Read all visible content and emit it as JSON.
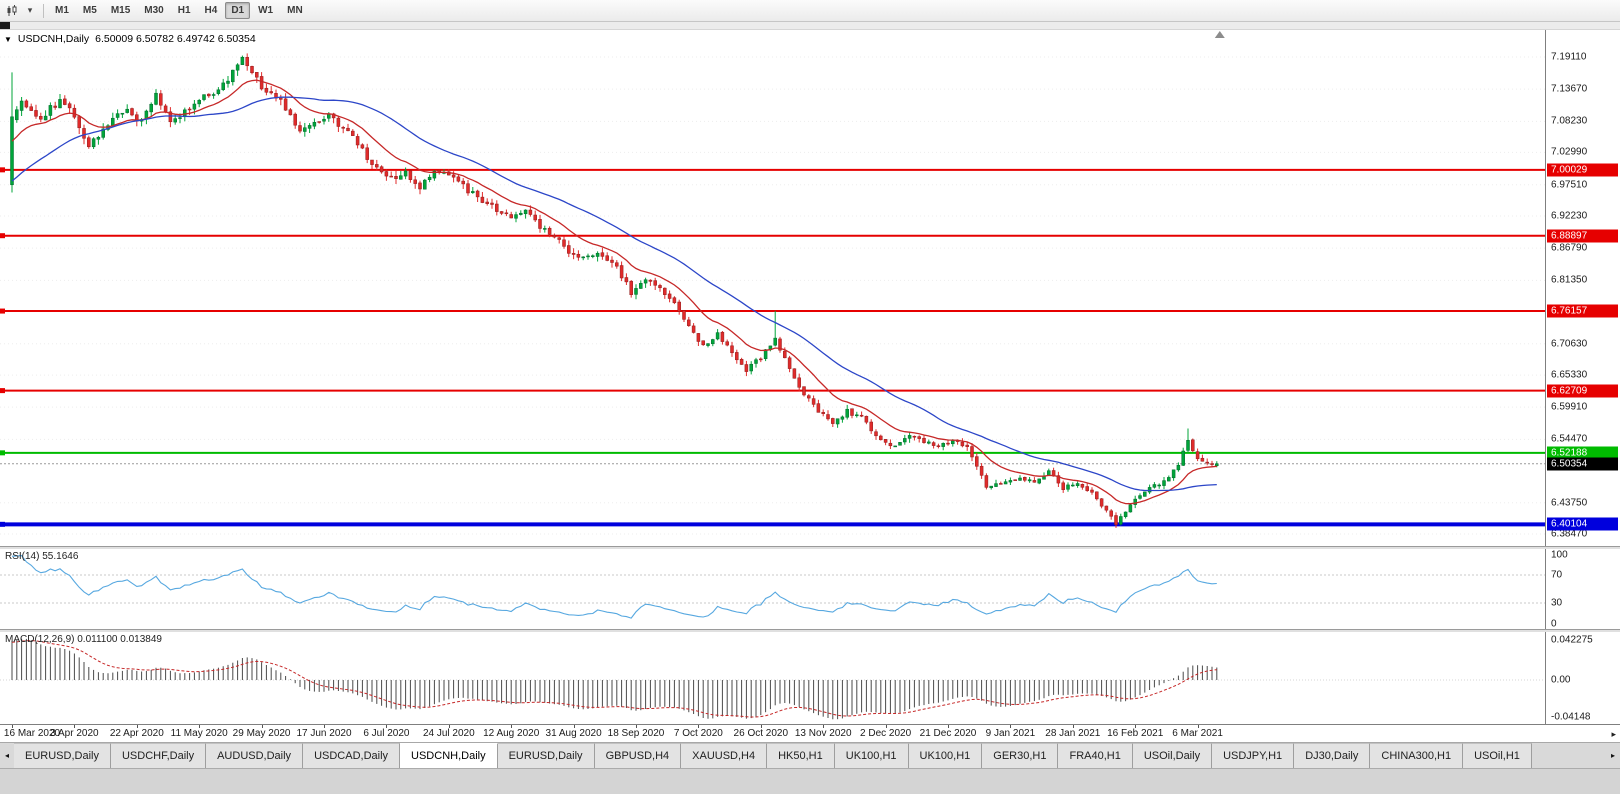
{
  "toolbar": {
    "timeframes": [
      "M1",
      "M5",
      "M15",
      "M30",
      "H1",
      "H4",
      "D1",
      "W1",
      "MN"
    ],
    "active_timeframe": "D1"
  },
  "chart": {
    "title_symbol": "USDCNH,Daily",
    "title_ohlc": "6.50009 6.50782 6.49742 6.50354"
  },
  "rsi_panel": {
    "label": "RSI(14) 55.1646"
  },
  "macd_panel": {
    "label": "MACD(12,26,9) 0.011100 0.013849"
  },
  "tabs": {
    "items": [
      "EURUSD,Daily",
      "USDCHF,Daily",
      "AUDUSD,Daily",
      "USDCAD,Daily",
      "USDCNH,Daily",
      "EURUSD,Daily",
      "GBPUSD,H4",
      "XAUUSD,H4",
      "HK50,H1",
      "UK100,H1",
      "UK100,H1",
      "GER30,H1",
      "FRA40,H1",
      "USOil,Daily",
      "USDJPY,H1",
      "DJ30,Daily",
      "CHINA300,H1",
      "USOil,H1"
    ],
    "active_index": 4
  },
  "chart_data": {
    "type": "candlestick",
    "symbol": "USDCNH",
    "timeframe": "Daily",
    "last_ohlc": {
      "open": 6.50009,
      "high": 6.50782,
      "low": 6.49742,
      "close": 6.50354
    },
    "y_range": {
      "top": 7.2367,
      "bottom": 6.3644
    },
    "y_ticks": [
      "7.19110",
      "7.13670",
      "7.08230",
      "7.02990",
      "6.97510",
      "6.92230",
      "6.86790",
      "6.81350",
      "6.70630",
      "6.65330",
      "6.59910",
      "6.54470",
      "6.43750",
      "6.38470"
    ],
    "levels": [
      {
        "value": 7.00029,
        "label": "7.00029",
        "color": "#e60000",
        "width": 2
      },
      {
        "value": 6.88897,
        "label": "6.88897",
        "color": "#e60000",
        "width": 2
      },
      {
        "value": 6.76157,
        "label": "6.76157",
        "color": "#e60000",
        "width": 2
      },
      {
        "value": 6.62709,
        "label": "6.62709",
        "color": "#e60000",
        "width": 2
      },
      {
        "value": 6.52188,
        "label": "6.52188",
        "color": "#00bb00",
        "width": 2
      },
      {
        "value": 6.40104,
        "label": "6.40104",
        "color": "#0000dd",
        "width": 4
      }
    ],
    "current_price": {
      "value": 6.50354,
      "label": "6.50354",
      "color": "#000000"
    },
    "up_color": "#00a53a",
    "down_color": "#e02b2b",
    "candle_count": 252,
    "seed": 20210312,
    "warmup": {
      "count": 40,
      "start_price": 6.83
    },
    "price_anchors": [
      [
        0,
        7.08
      ],
      [
        2,
        7.115
      ],
      [
        4,
        7.1
      ],
      [
        6,
        7.085
      ],
      [
        8,
        7.105
      ],
      [
        10,
        7.115
      ],
      [
        12,
        7.1
      ],
      [
        14,
        7.075
      ],
      [
        16,
        7.04
      ],
      [
        18,
        7.06
      ],
      [
        20,
        7.08
      ],
      [
        22,
        7.095
      ],
      [
        24,
        7.1
      ],
      [
        26,
        7.085
      ],
      [
        28,
        7.095
      ],
      [
        30,
        7.125
      ],
      [
        32,
        7.1
      ],
      [
        33,
        7.08
      ],
      [
        36,
        7.1
      ],
      [
        39,
        7.12
      ],
      [
        42,
        7.13
      ],
      [
        45,
        7.155
      ],
      [
        48,
        7.19
      ],
      [
        50,
        7.165
      ],
      [
        52,
        7.14
      ],
      [
        54,
        7.13
      ],
      [
        56,
        7.115
      ],
      [
        58,
        7.09
      ],
      [
        60,
        7.07
      ],
      [
        63,
        7.08
      ],
      [
        66,
        7.09
      ],
      [
        69,
        7.07
      ],
      [
        72,
        7.045
      ],
      [
        74,
        7.02
      ],
      [
        76,
        7.005
      ],
      [
        79,
        6.985
      ],
      [
        82,
        6.995
      ],
      [
        85,
        6.972
      ],
      [
        88,
        7.0
      ],
      [
        91,
        6.99
      ],
      [
        94,
        6.972
      ],
      [
        97,
        6.953
      ],
      [
        101,
        6.932
      ],
      [
        104,
        6.92
      ],
      [
        107,
        6.93
      ],
      [
        110,
        6.905
      ],
      [
        113,
        6.89
      ],
      [
        116,
        6.862
      ],
      [
        119,
        6.85
      ],
      [
        122,
        6.862
      ],
      [
        126,
        6.835
      ],
      [
        129,
        6.793
      ],
      [
        132,
        6.812
      ],
      [
        135,
        6.8
      ],
      [
        138,
        6.772
      ],
      [
        141,
        6.733
      ],
      [
        144,
        6.703
      ],
      [
        147,
        6.722
      ],
      [
        150,
        6.692
      ],
      [
        153,
        6.662
      ],
      [
        156,
        6.683
      ],
      [
        159,
        6.712
      ],
      [
        162,
        6.662
      ],
      [
        165,
        6.622
      ],
      [
        168,
        6.592
      ],
      [
        171,
        6.572
      ],
      [
        174,
        6.592
      ],
      [
        177,
        6.582
      ],
      [
        180,
        6.552
      ],
      [
        184,
        6.532
      ],
      [
        187,
        6.552
      ],
      [
        190,
        6.542
      ],
      [
        193,
        6.532
      ],
      [
        196,
        6.542
      ],
      [
        199,
        6.532
      ],
      [
        201,
        6.502
      ],
      [
        203,
        6.462
      ],
      [
        207,
        6.472
      ],
      [
        210,
        6.482
      ],
      [
        213,
        6.472
      ],
      [
        216,
        6.49
      ],
      [
        219,
        6.462
      ],
      [
        222,
        6.472
      ],
      [
        225,
        6.452
      ],
      [
        228,
        6.422
      ],
      [
        230,
        6.402
      ],
      [
        234,
        6.442
      ],
      [
        237,
        6.462
      ],
      [
        240,
        6.472
      ],
      [
        243,
        6.5
      ],
      [
        245,
        6.545
      ],
      [
        247,
        6.512
      ],
      [
        249,
        6.502
      ],
      [
        251,
        6.5035
      ]
    ],
    "candle_overrides": {
      "0": {
        "o": 6.975,
        "h": 7.165,
        "l": 6.962,
        "c": 7.09
      },
      "159": {
        "h": 6.762
      },
      "230": {
        "l": 6.395
      },
      "245": {
        "h": 6.563
      },
      "251": {
        "o": 6.50009,
        "h": 6.50782,
        "l": 6.49742,
        "c": 6.50354
      }
    },
    "ma_lines": [
      {
        "type": "ema",
        "period": 13,
        "color": "#c62828"
      },
      {
        "type": "sma",
        "period": 34,
        "color": "#2c46c8"
      }
    ],
    "x_labels": [
      [
        0,
        "16 Mar 2020"
      ],
      [
        13,
        "3 Apr 2020"
      ],
      [
        26,
        "22 Apr 2020"
      ],
      [
        39,
        "11 May 2020"
      ],
      [
        52,
        "29 May 2020"
      ],
      [
        65,
        "17 Jun 2020"
      ],
      [
        78,
        "6 Jul 2020"
      ],
      [
        91,
        "24 Jul 2020"
      ],
      [
        104,
        "12 Aug 2020"
      ],
      [
        117,
        "31 Aug 2020"
      ],
      [
        130,
        "18 Sep 2020"
      ],
      [
        143,
        "7 Oct 2020"
      ],
      [
        156,
        "26 Oct 2020"
      ],
      [
        169,
        "13 Nov 2020"
      ],
      [
        182,
        "2 Dec 2020"
      ],
      [
        195,
        "21 Dec 2020"
      ],
      [
        208,
        "9 Jan 2021"
      ],
      [
        221,
        "28 Jan 2021"
      ],
      [
        234,
        "16 Feb 2021"
      ],
      [
        247,
        "6 Mar 2021"
      ]
    ],
    "indicators": {
      "rsi": {
        "period": 14,
        "value": 55.1646,
        "color": "#57a8e0",
        "levels": [
          70,
          30
        ],
        "axis_labels": [
          {
            "v": 100,
            "text": "100"
          },
          {
            "v": 70,
            "text": "70"
          },
          {
            "v": 30,
            "text": "30"
          },
          {
            "v": 0,
            "text": "0"
          }
        ]
      },
      "macd": {
        "fast": 12,
        "slow": 26,
        "signal": 9,
        "value": 0.0111,
        "signal_value": 0.013849,
        "hist_color": "#4a4a4a",
        "signal_color": "#c62828",
        "axis_labels": [
          {
            "v": 0.042275,
            "text": "0.042275"
          },
          {
            "v": 0,
            "text": "0.00"
          },
          {
            "v": -0.04148,
            "text": "-0.04148"
          }
        ]
      }
    }
  }
}
